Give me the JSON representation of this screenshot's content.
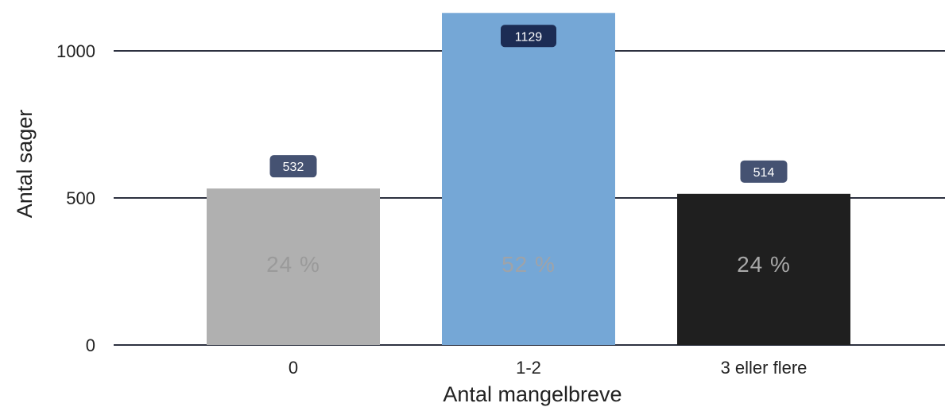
{
  "chart_data": {
    "type": "bar",
    "title": "",
    "xlabel": "Antal mangelbreve",
    "ylabel": "Antal sager",
    "categories": [
      "0",
      "1-2",
      "3 eller flere"
    ],
    "values": [
      532,
      1129,
      514
    ],
    "value_labels": [
      "532",
      "1129",
      "514"
    ],
    "percent_labels": [
      "24 %",
      "52 %",
      "24 %"
    ],
    "bar_colors": [
      "#b0b0b0",
      "#75a7d6",
      "#1f1f1f"
    ],
    "percent_label_colors": [
      "#9a9a9a",
      "#9fa3a8",
      "#a8a8a8"
    ],
    "data_label_colors": [
      "#455272",
      "#1c2c54",
      "#455272"
    ],
    "ylim": [
      0,
      1129
    ],
    "yticks": [
      0,
      500,
      1000
    ],
    "ytick_labels": [
      "0",
      "500",
      "1000"
    ],
    "grid": true,
    "gridline_color": "#2d3140",
    "legend": "none"
  }
}
